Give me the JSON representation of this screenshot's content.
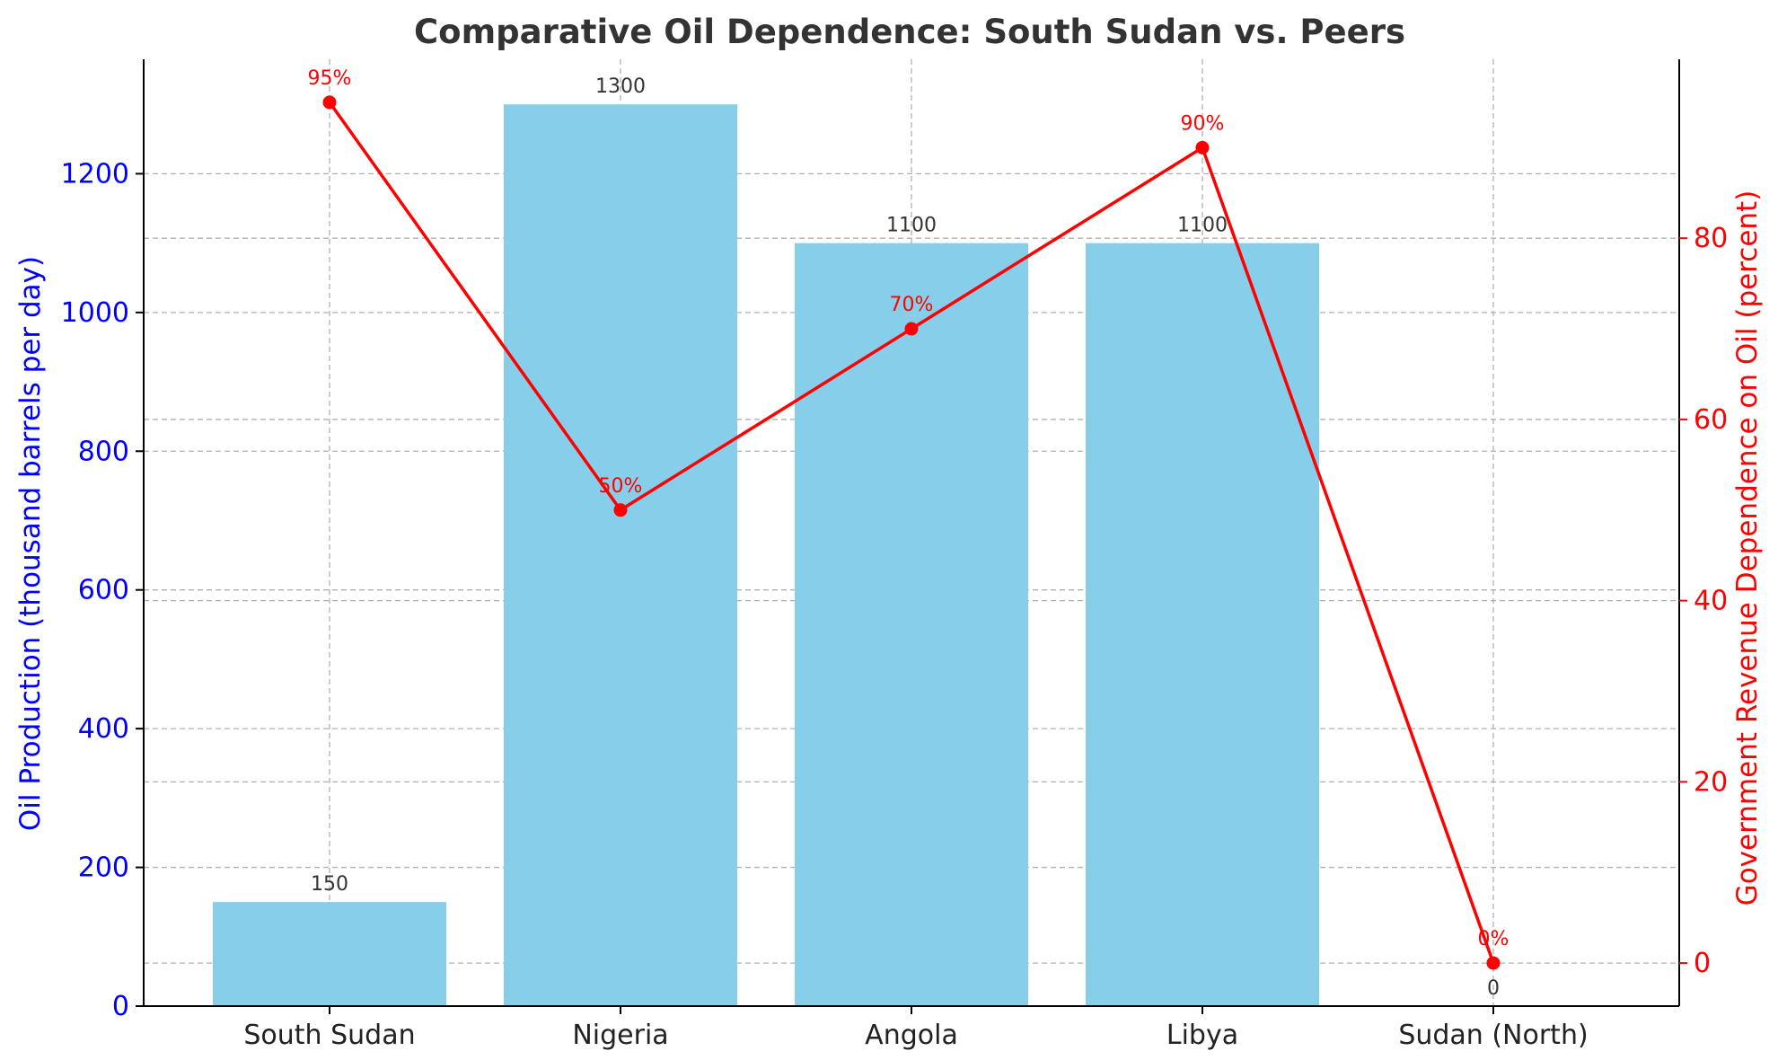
{
  "chart_data": {
    "type": "bar",
    "title": "Comparative Oil Dependence: South Sudan vs. Peers",
    "categories": [
      "South Sudan",
      "Nigeria",
      "Angola",
      "Libya",
      "Sudan (North)"
    ],
    "series": [
      {
        "name": "",
        "type": "bar",
        "axis": "left",
        "values": [
          150,
          1300,
          1100,
          1100,
          0
        ],
        "labels": [
          "150",
          "1300",
          "1100",
          "1100",
          "0"
        ],
        "color": "#87ceeb"
      },
      {
        "name": "",
        "type": "line",
        "axis": "right",
        "values": [
          95,
          50,
          70,
          90,
          0
        ],
        "labels": [
          "95%",
          "50%",
          "70%",
          "90%",
          "0%"
        ],
        "color": "#ff0000"
      }
    ],
    "ylabel_left": "Oil Production (thousand barrels per day)",
    "ylabel_right": "Government Revenue Dependence on Oil (percent)",
    "xlabel": "",
    "ylim_left": [
      0,
      1365
    ],
    "ylim_right": [
      -4.75,
      99.75
    ],
    "yticks_left": [
      0,
      200,
      400,
      600,
      800,
      1000,
      1200
    ],
    "yticks_right": [
      0,
      20,
      40,
      60,
      80
    ],
    "grid": true,
    "colors": {
      "left_axis": "#0000ff",
      "right_axis": "#ff0000",
      "bar": "#87ceeb",
      "line": "#ff0000"
    }
  }
}
